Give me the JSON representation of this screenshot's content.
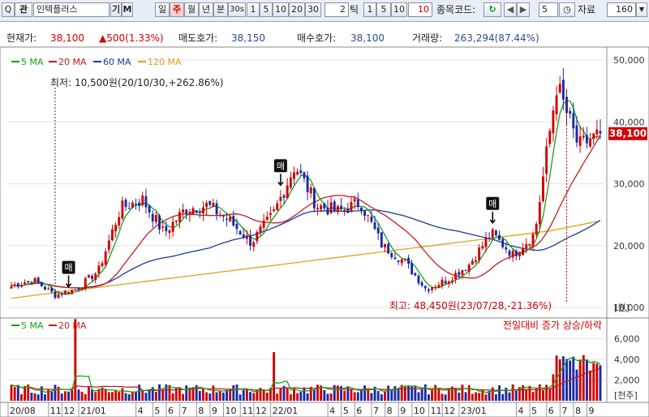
{
  "toolbar": {
    "search_label": "Q",
    "chart_label": "관",
    "stock_name": "인텍플러스",
    "gi_label": "기",
    "m_label": "M",
    "periods": [
      "일",
      "주",
      "월",
      "년",
      "분",
      "30s"
    ],
    "selected_period": "주",
    "unit_buttons": [
      "1",
      "5",
      "10",
      "20",
      "30"
    ],
    "tick_value": "2",
    "tick_label": "틱",
    "tick_buttons": [
      "1",
      "5",
      "10"
    ],
    "tick_value2": "10",
    "code_label": "종목코드:",
    "refresh_label": "↻",
    "prev_label": "◀",
    "next_label": "▶",
    "count_value": "5",
    "clock_label": "◷",
    "data_label": "자료",
    "data_count": "160",
    "dropdown_label": "▼"
  },
  "info": {
    "price_label": "현재가:",
    "price": "38,100",
    "change": "▲500(1.33%)",
    "ask_label": "매도호가:",
    "ask": "38,150",
    "bid_label": "매수호가:",
    "bid": "38,100",
    "volume_label": "거래량:",
    "volume": "263,294(87.44%)"
  },
  "colors": {
    "up": "#d00000",
    "down": "#1a2aa6",
    "ma5": "#1aa01a",
    "ma20": "#c02020",
    "ma60": "#1a3a9a",
    "ma120": "#e0a020",
    "volume_up": "#d00000",
    "volume_down": "#1a2aa6"
  },
  "chart_data": [
    {
      "type": "candlestick",
      "title": "",
      "legend": [
        "5 MA",
        "20 MA",
        "60 MA",
        "120 MA"
      ],
      "ylim": [
        10000,
        50000
      ],
      "yticks": [
        10000,
        20000,
        30000,
        40000,
        50000
      ],
      "ytick_labels": [
        "10,000",
        "20,000",
        "30,000",
        "40,000",
        "50,000"
      ],
      "y_unit": "[원]",
      "current_price_label": "38,100",
      "annotations": {
        "low": "최저: 10,500원(20/10/30,+262.86%)",
        "high": "최고: 48,450원(23/07/28,-21.36%)",
        "buy_markers": [
          "매",
          "매",
          "매"
        ]
      },
      "price_keypoints": [
        [
          "2020-08",
          13500
        ],
        [
          "2020-09",
          14500
        ],
        [
          "2020-10",
          12000
        ],
        [
          "2020-11",
          13000
        ],
        [
          "2020-12",
          16000
        ],
        [
          "2021-01",
          26000
        ],
        [
          "2021-03",
          27500
        ],
        [
          "2021-05",
          22000
        ],
        [
          "2021-06",
          26000
        ],
        [
          "2021-07",
          26500
        ],
        [
          "2021-09",
          24000
        ],
        [
          "2021-10",
          20500
        ],
        [
          "2021-12",
          25000
        ],
        [
          "2022-01",
          33000
        ],
        [
          "2022-02",
          26500
        ],
        [
          "2022-04",
          25500
        ],
        [
          "2022-06",
          27000
        ],
        [
          "2022-07",
          20000
        ],
        [
          "2022-08",
          17500
        ],
        [
          "2022-10",
          13000
        ],
        [
          "2022-12",
          14500
        ],
        [
          "2023-02",
          17000
        ],
        [
          "2023-04",
          22000
        ],
        [
          "2023-05",
          18500
        ],
        [
          "2023-06",
          22000
        ],
        [
          "2023-07",
          46000
        ],
        [
          "2023-08",
          36000
        ],
        [
          "2023-09",
          38100
        ]
      ]
    },
    {
      "type": "bar",
      "title": "",
      "legend": [
        "5 MA",
        "20 MA"
      ],
      "note": "전일대비 증가 상승/하락",
      "ylim": [
        0,
        8000
      ],
      "yticks": [
        2000,
        4000,
        6000
      ],
      "ytick_labels": [
        "2,000",
        "4,000",
        "6,000"
      ],
      "y_unit": "[천주]"
    }
  ],
  "x_axis": {
    "ticks": [
      {
        "i": 0,
        "label": "20/08"
      },
      {
        "i": 12,
        "label": "11"
      },
      {
        "i": 16,
        "label": "12"
      },
      {
        "i": 21,
        "label": "21/01"
      },
      {
        "i": 38,
        "label": "4"
      },
      {
        "i": 43,
        "label": "5"
      },
      {
        "i": 47,
        "label": "6"
      },
      {
        "i": 51,
        "label": "7"
      },
      {
        "i": 56,
        "label": "8"
      },
      {
        "i": 60,
        "label": "9"
      },
      {
        "i": 64,
        "label": "10"
      },
      {
        "i": 69,
        "label": "11"
      },
      {
        "i": 73,
        "label": "12"
      },
      {
        "i": 78,
        "label": "22/01"
      },
      {
        "i": 95,
        "label": "4"
      },
      {
        "i": 99,
        "label": "5"
      },
      {
        "i": 103,
        "label": "6"
      },
      {
        "i": 108,
        "label": "7"
      },
      {
        "i": 112,
        "label": "8"
      },
      {
        "i": 116,
        "label": "9"
      },
      {
        "i": 120,
        "label": "10"
      },
      {
        "i": 125,
        "label": "11"
      },
      {
        "i": 129,
        "label": "12"
      },
      {
        "i": 134,
        "label": "23/01"
      },
      {
        "i": 151,
        "label": "4"
      },
      {
        "i": 155,
        "label": "5"
      },
      {
        "i": 160,
        "label": "6"
      },
      {
        "i": 164,
        "label": "7"
      },
      {
        "i": 168,
        "label": "8"
      },
      {
        "i": 172,
        "label": "9"
      }
    ]
  }
}
